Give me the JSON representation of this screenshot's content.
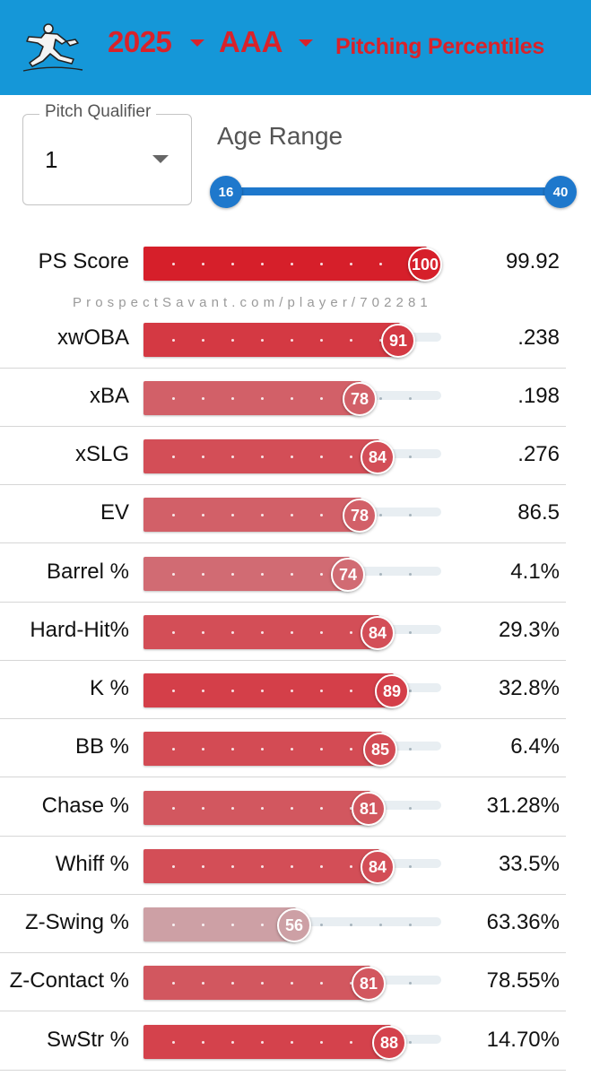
{
  "header": {
    "season": "2025",
    "level": "AAA",
    "title": "Pitching Percentiles",
    "logo_icon": "pitcher-icon",
    "accent_color": "#d9222a",
    "background_color": "#1597d8"
  },
  "filters": {
    "pitch_qualifier": {
      "legend": "Pitch Qualifier",
      "value": "1"
    },
    "age_range": {
      "label": "Age Range",
      "min": "16",
      "max": "40"
    }
  },
  "watermark": "ProspectSavant.com/player/702281",
  "rows": [
    {
      "label": "PS Score",
      "percentile": 100,
      "value": "99.92"
    },
    {
      "label": "xwOBA",
      "percentile": 91,
      "value": ".238"
    },
    {
      "label": "xBA",
      "percentile": 78,
      "value": ".198"
    },
    {
      "label": "xSLG",
      "percentile": 84,
      "value": ".276"
    },
    {
      "label": "EV",
      "percentile": 78,
      "value": "86.5"
    },
    {
      "label": "Barrel %",
      "percentile": 74,
      "value": "4.1%"
    },
    {
      "label": "Hard-Hit%",
      "percentile": 84,
      "value": "29.3%"
    },
    {
      "label": "K %",
      "percentile": 89,
      "value": "32.8%"
    },
    {
      "label": "BB %",
      "percentile": 85,
      "value": "6.4%"
    },
    {
      "label": "Chase %",
      "percentile": 81,
      "value": "31.28%"
    },
    {
      "label": "Whiff %",
      "percentile": 84,
      "value": "33.5%"
    },
    {
      "label": "Z-Swing %",
      "percentile": 56,
      "value": "63.36%"
    },
    {
      "label": "Z-Contact %",
      "percentile": 81,
      "value": "78.55%"
    },
    {
      "label": "SwStr %",
      "percentile": 88,
      "value": "14.70%"
    }
  ]
}
